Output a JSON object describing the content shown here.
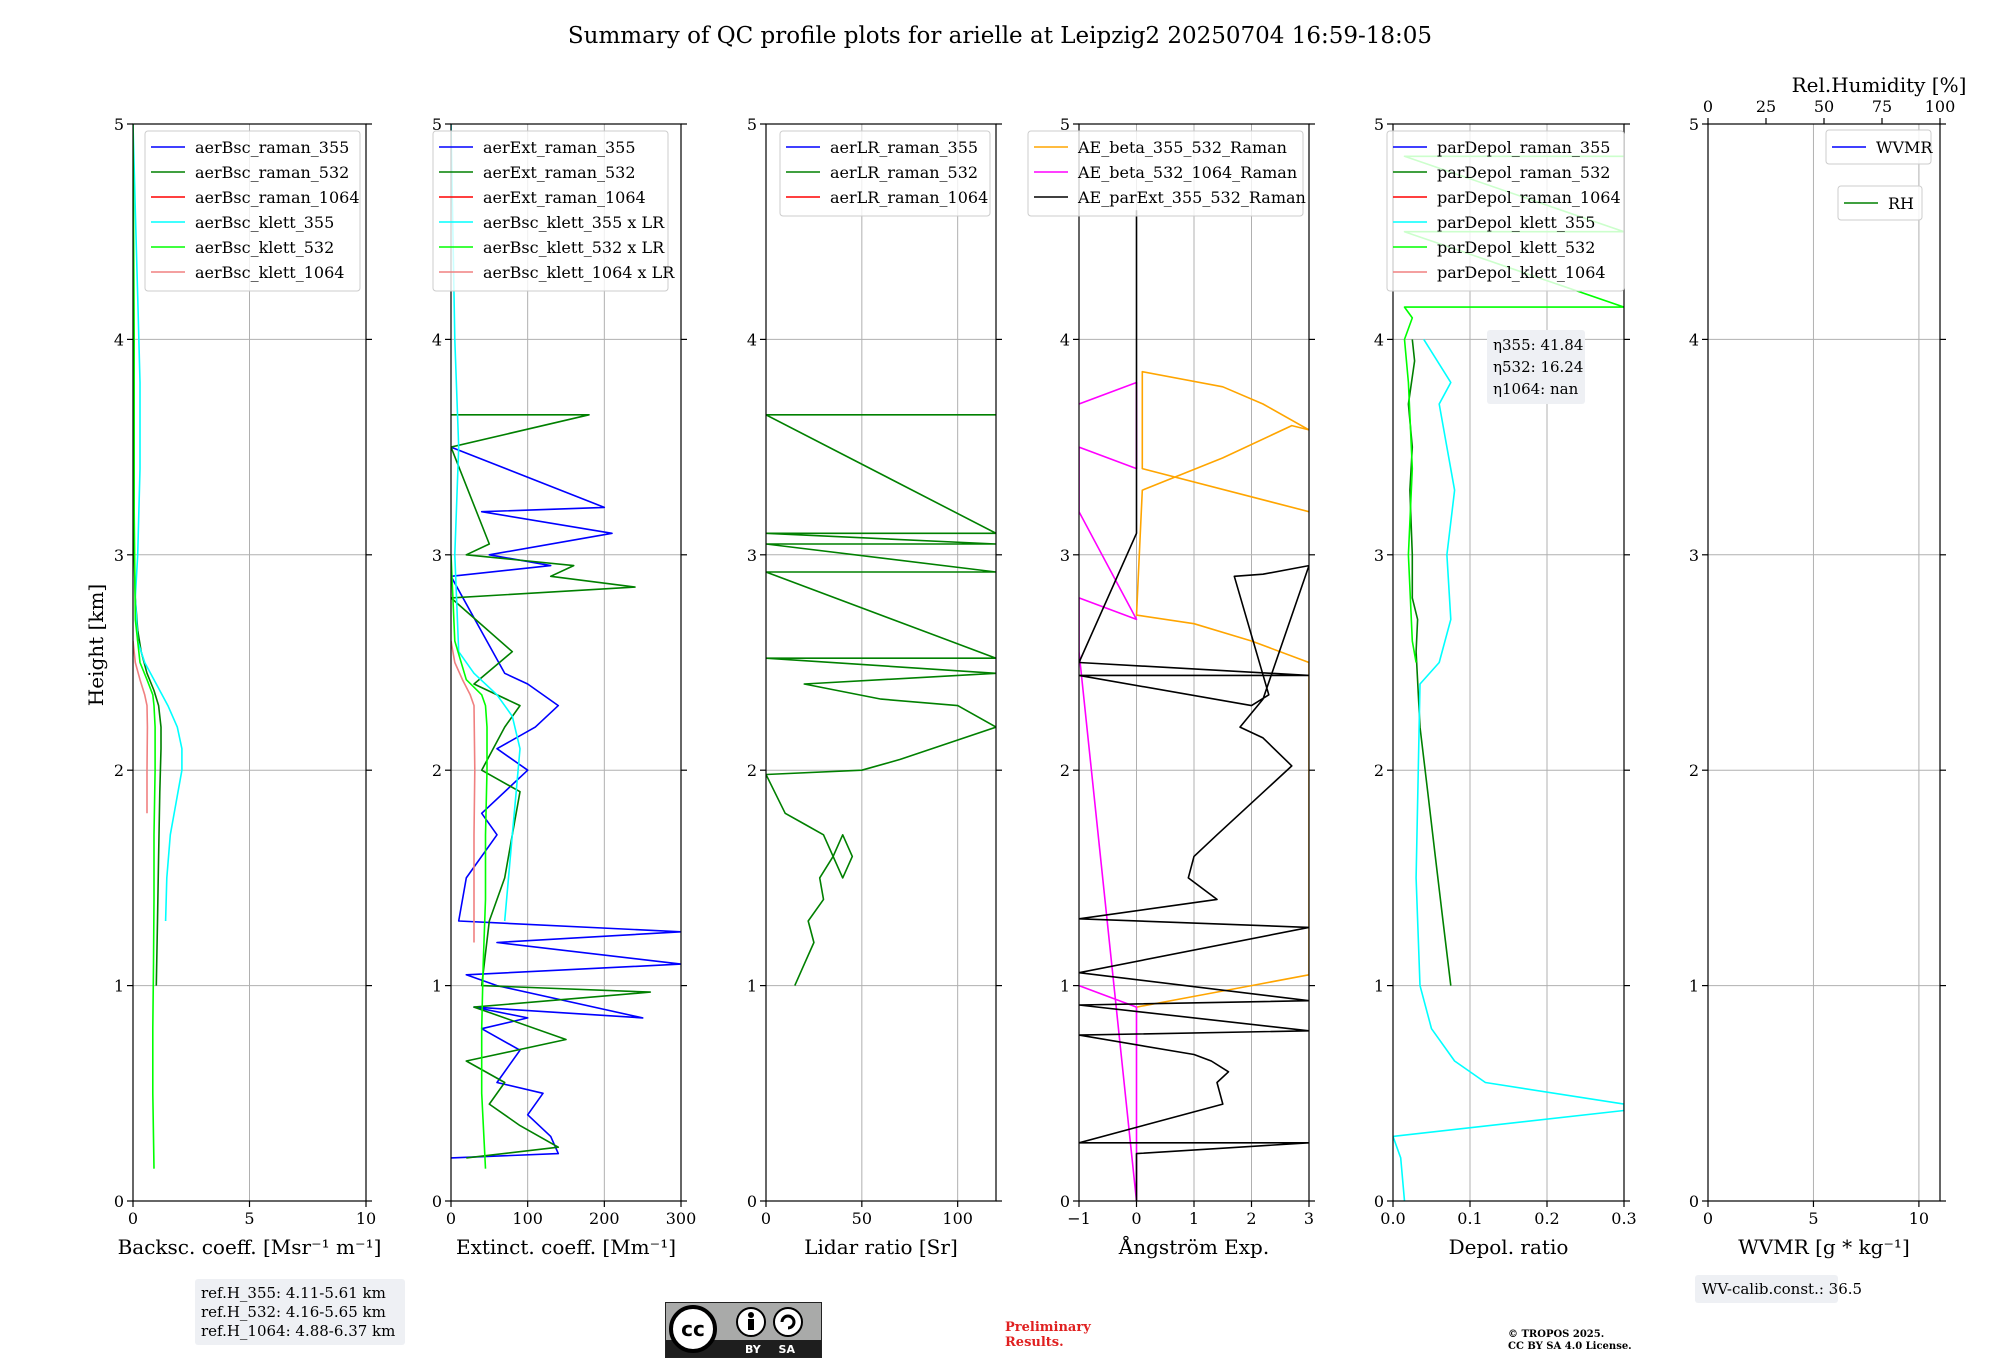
{
  "figure": {
    "title": "Summary of QC profile plots for arielle at Leipzig2 20250704 16:59-18:05",
    "preliminary_line1": "Preliminary",
    "preliminary_line2": "Results.",
    "copyright_line1": "© TROPOS 2025.",
    "copyright_line2": "CC BY SA 4.0 License.",
    "cc_badge_text": "BY SA",
    "wv_calib": "WV-calib.const.: 36.5",
    "ref_heights": [
      "ref.H_355: 4.11-5.61 km",
      "ref.H_532: 4.16-5.65 km",
      "ref.H_1064: 4.88-6.37 km"
    ],
    "eta_labels": [
      "η355: 41.84",
      "η532: 16.24",
      "η1064: nan"
    ],
    "shared_ylabel": "Height [km]"
  },
  "colors": {
    "raman_355": "#0000ff",
    "raman_532": "#008000",
    "raman_1064": "#ff0000",
    "klett_355": "#00ffff",
    "klett_532": "#00ff00",
    "klett_1064": "#f08080",
    "ae_355_532": "#ffa500",
    "ae_532_1064": "#ff00ff",
    "ae_ext": "#000000",
    "grid": "#b0b0b0"
  },
  "chart_data": [
    {
      "type": "line",
      "xlabel": "Backsc. coeff. [Msr⁻¹ m⁻¹]",
      "ylabel": "Height [km]",
      "xlim": [
        0,
        10
      ],
      "ylim": [
        0,
        5
      ],
      "xticks": [
        0,
        5,
        10
      ],
      "yticks": [
        0,
        1,
        2,
        3,
        4,
        5
      ],
      "grid": true,
      "legend": "upper right",
      "series": [
        {
          "name": "aerBsc_raman_355",
          "color": "#0000ff",
          "x": [],
          "y": []
        },
        {
          "name": "aerBsc_raman_532",
          "color": "#008000",
          "x": [
            1.0,
            1.05,
            1.1,
            1.15,
            1.2,
            1.2,
            1.1,
            0.9,
            0.6,
            0.35,
            0.2,
            0.1,
            0.05,
            0.05,
            0.03,
            0.02
          ],
          "y": [
            1.0,
            1.3,
            1.6,
            1.9,
            2.1,
            2.2,
            2.3,
            2.37,
            2.45,
            2.55,
            2.65,
            2.8,
            3.0,
            3.3,
            3.7,
            4.1
          ]
        },
        {
          "name": "aerBsc_raman_1064",
          "color": "#ff0000",
          "x": [],
          "y": []
        },
        {
          "name": "aerBsc_klett_355",
          "color": "#00ffff",
          "x": [
            1.4,
            1.45,
            1.6,
            1.85,
            2.1,
            2.1,
            1.9,
            1.5,
            1.0,
            0.5,
            0.2,
            0.1,
            0.2,
            0.3,
            0.3,
            0.2,
            0.1,
            0.0
          ],
          "y": [
            1.3,
            1.5,
            1.7,
            1.85,
            2.0,
            2.1,
            2.2,
            2.3,
            2.4,
            2.5,
            2.6,
            2.8,
            3.0,
            3.4,
            3.8,
            4.2,
            4.6,
            5.0
          ]
        },
        {
          "name": "aerBsc_klett_532",
          "color": "#00ff00",
          "x": [
            0.9,
            0.85,
            0.85,
            0.88,
            0.9,
            0.9,
            0.95,
            0.95,
            0.9,
            0.85,
            0.6,
            0.3,
            0.1,
            0.05,
            0.05,
            0.0
          ],
          "y": [
            0.15,
            0.5,
            0.8,
            1.1,
            1.4,
            1.7,
            2.0,
            2.2,
            2.3,
            2.35,
            2.42,
            2.5,
            2.7,
            3.2,
            4.0,
            5.0
          ]
        },
        {
          "name": "aerBsc_klett_1064",
          "color": "#f08080",
          "x": [
            0.6,
            0.6,
            0.62,
            0.6,
            0.5,
            0.3,
            0.1,
            0.0
          ],
          "y": [
            1.8,
            2.0,
            2.2,
            2.3,
            2.35,
            2.42,
            2.5,
            2.6
          ]
        }
      ]
    },
    {
      "type": "line",
      "xlabel": "Extinct. coeff. [Mm⁻¹]",
      "xlim": [
        0,
        300
      ],
      "ylim": [
        0,
        5
      ],
      "xticks": [
        0,
        100,
        200,
        300
      ],
      "yticks": [
        0,
        1,
        2,
        3,
        4,
        5
      ],
      "grid": true,
      "legend": "upper right",
      "series": [
        {
          "name": "aerExt_raman_355",
          "color": "#0000ff",
          "x": [
            0,
            140,
            130,
            100,
            120,
            60,
            90,
            40,
            100,
            30,
            250,
            60,
            20,
            300,
            60,
            300,
            10,
            20,
            60,
            40,
            100,
            60,
            110,
            140,
            100,
            70,
            0,
            130,
            50,
            210,
            40,
            200,
            0
          ],
          "y": [
            0.2,
            0.22,
            0.3,
            0.4,
            0.5,
            0.55,
            0.7,
            0.8,
            0.85,
            0.9,
            0.85,
            1.0,
            1.05,
            1.1,
            1.2,
            1.25,
            1.3,
            1.5,
            1.7,
            1.8,
            2.0,
            2.1,
            2.2,
            2.3,
            2.4,
            2.45,
            2.9,
            2.95,
            3.0,
            3.1,
            3.2,
            3.22,
            3.5
          ]
        },
        {
          "name": "aerExt_raman_532",
          "color": "#008000",
          "x": [
            20,
            140,
            90,
            50,
            70,
            20,
            150,
            30,
            260,
            40,
            50,
            70,
            80,
            90,
            40,
            70,
            90,
            30,
            80,
            0,
            240,
            130,
            160,
            20,
            50,
            0,
            180,
            0
          ],
          "y": [
            0.2,
            0.25,
            0.35,
            0.45,
            0.55,
            0.65,
            0.75,
            0.9,
            0.97,
            1.0,
            1.3,
            1.5,
            1.7,
            1.9,
            2.0,
            2.2,
            2.3,
            2.4,
            2.55,
            2.8,
            2.85,
            2.9,
            2.95,
            3.0,
            3.05,
            3.5,
            3.65,
            3.65
          ]
        },
        {
          "name": "aerExt_raman_1064",
          "color": "#ff0000",
          "x": [],
          "y": []
        },
        {
          "name": "aerBsc_klett_355 x LR",
          "color": "#00ffff",
          "x": [
            70,
            75,
            80,
            85,
            90,
            80,
            60,
            30,
            10,
            5,
            10,
            5,
            0
          ],
          "y": [
            1.3,
            1.5,
            1.7,
            1.9,
            2.1,
            2.25,
            2.35,
            2.45,
            2.55,
            3.0,
            3.5,
            4.0,
            5.0
          ]
        },
        {
          "name": "aerBsc_klett_532 x LR",
          "color": "#00ff00",
          "x": [
            45,
            40,
            40,
            42,
            45,
            45,
            47,
            47,
            45,
            40,
            20,
            5,
            0
          ],
          "y": [
            0.15,
            0.5,
            0.8,
            1.1,
            1.4,
            1.7,
            2.0,
            2.2,
            2.3,
            2.35,
            2.42,
            2.6,
            3.0
          ]
        },
        {
          "name": "aerBsc_klett_1064 x LR",
          "color": "#f08080",
          "x": [
            30,
            30,
            31,
            30,
            25,
            15,
            5,
            0
          ],
          "y": [
            1.2,
            1.7,
            2.0,
            2.3,
            2.35,
            2.42,
            2.5,
            2.6
          ]
        }
      ]
    },
    {
      "type": "line",
      "xlabel": "Lidar ratio [Sr]",
      "xlim": [
        0,
        120
      ],
      "ylim": [
        0,
        5
      ],
      "xticks": [
        0,
        50,
        100
      ],
      "yticks": [
        0,
        1,
        2,
        3,
        4,
        5
      ],
      "grid": true,
      "legend": "upper right",
      "series": [
        {
          "name": "aerLR_raman_355",
          "color": "#0000ff",
          "x": [],
          "y": []
        },
        {
          "name": "aerLR_raman_532",
          "color": "#008000",
          "x": [
            15,
            20,
            25,
            22,
            30,
            28,
            35,
            40,
            45,
            40,
            30,
            20,
            10,
            0,
            50,
            70,
            120,
            100,
            60,
            20,
            120,
            0,
            120,
            0,
            120,
            0,
            120,
            0,
            120,
            0,
            120
          ],
          "y": [
            1.0,
            1.1,
            1.2,
            1.3,
            1.4,
            1.5,
            1.6,
            1.7,
            1.6,
            1.5,
            1.7,
            1.75,
            1.8,
            1.98,
            2.0,
            2.05,
            2.2,
            2.3,
            2.33,
            2.4,
            2.45,
            2.52,
            2.52,
            2.92,
            2.92,
            3.05,
            3.05,
            3.1,
            3.1,
            3.65,
            3.65
          ]
        },
        {
          "name": "aerLR_raman_1064",
          "color": "#ff0000",
          "x": [],
          "y": []
        }
      ]
    },
    {
      "type": "line",
      "xlabel": "Ångström Exp.",
      "xlim": [
        -1,
        3
      ],
      "ylim": [
        0,
        5
      ],
      "xticks": [
        -1,
        0,
        1,
        2,
        3
      ],
      "yticks": [
        0,
        1,
        2,
        3,
        4,
        5
      ],
      "grid": true,
      "legend": "upper right",
      "series": [
        {
          "name": "AE_beta_355_532_Raman",
          "color": "#ffa500",
          "x": [
            0,
            1,
            2,
            3,
            3,
            2,
            1,
            0,
            0.1,
            1.5,
            2.7,
            3.0,
            2.2,
            1.5,
            0.1,
            0.1,
            3.0
          ],
          "y": [
            0.9,
            0.95,
            1.0,
            1.05,
            2.5,
            2.6,
            2.68,
            2.72,
            3.3,
            3.45,
            3.6,
            3.58,
            3.7,
            3.78,
            3.85,
            3.4,
            3.2
          ]
        },
        {
          "name": "AE_beta_532_1064_Raman",
          "color": "#ff00ff",
          "x": [
            -1,
            0,
            0,
            -1,
            -1,
            0,
            -1,
            -1,
            0,
            0,
            -1
          ],
          "y": [
            1.0,
            0.9,
            0.0,
            2.55,
            2.8,
            2.7,
            3.2,
            3.5,
            3.4,
            3.8,
            3.7
          ]
        },
        {
          "name": "AE_parExt_355_532_Raman",
          "color": "#000000",
          "x": [
            0,
            0,
            3,
            -1,
            1.5,
            1.4,
            1.6,
            1.3,
            1.0,
            -1,
            3,
            -1,
            3,
            -1,
            3,
            -1,
            1.4,
            0.9,
            1.0,
            1.4,
            2.7,
            2.2,
            1.8,
            2.2,
            3.0,
            2.2,
            1.7,
            2.3,
            2.0,
            -1,
            3,
            -1,
            0,
            0
          ],
          "y": [
            0.0,
            0.22,
            0.27,
            0.27,
            0.45,
            0.55,
            0.6,
            0.65,
            0.68,
            0.77,
            0.79,
            0.91,
            0.93,
            1.06,
            1.27,
            1.31,
            1.4,
            1.5,
            1.6,
            1.7,
            2.02,
            2.15,
            2.2,
            2.33,
            2.95,
            2.91,
            2.9,
            2.35,
            2.3,
            2.44,
            2.44,
            2.5,
            3.1,
            4.6
          ]
        }
      ]
    },
    {
      "type": "line",
      "xlabel": "Depol. ratio",
      "xlim": [
        0,
        0.3
      ],
      "ylim": [
        0,
        5
      ],
      "xticks": [
        0.0,
        0.1,
        0.2,
        0.3
      ],
      "yticks": [
        0,
        1,
        2,
        3,
        4,
        5
      ],
      "grid": true,
      "legend": "upper right",
      "series": [
        {
          "name": "parDepol_raman_355",
          "color": "#0000ff",
          "x": [],
          "y": []
        },
        {
          "name": "parDepol_raman_532",
          "color": "#008000",
          "x": [
            0.075,
            0.065,
            0.055,
            0.045,
            0.035,
            0.03,
            0.032,
            0.025,
            0.025,
            0.022,
            0.025,
            0.02,
            0.028,
            0.025
          ],
          "y": [
            1.0,
            1.3,
            1.6,
            1.9,
            2.2,
            2.55,
            2.7,
            2.8,
            3.0,
            3.3,
            3.5,
            3.7,
            3.9,
            4.0
          ]
        },
        {
          "name": "parDepol_raman_1064",
          "color": "#ff0000",
          "x": [],
          "y": []
        },
        {
          "name": "parDepol_klett_355",
          "color": "#00ffff",
          "x": [
            0.015,
            0.01,
            0.0,
            0.3,
            0.3,
            0.12,
            0.08,
            0.05,
            0.035,
            0.03,
            0.035,
            0.06,
            0.075,
            0.07,
            0.08,
            0.07,
            0.06,
            0.075,
            0.04
          ],
          "y": [
            0.0,
            0.2,
            0.3,
            0.42,
            0.45,
            0.55,
            0.65,
            0.8,
            1.0,
            1.5,
            2.4,
            2.5,
            2.7,
            3.0,
            3.3,
            3.5,
            3.7,
            3.8,
            4.0
          ]
        },
        {
          "name": "parDepol_klett_532",
          "color": "#00ff00",
          "x": [
            0.03,
            0.025,
            0.02,
            0.025,
            0.02,
            0.015,
            0.025,
            0.015,
            0.3,
            0.015,
            0.3,
            0.015,
            0.3
          ],
          "y": [
            2.5,
            2.6,
            3.0,
            3.4,
            3.8,
            4.0,
            4.1,
            4.15,
            4.15,
            4.5,
            4.5,
            4.85,
            4.85
          ]
        },
        {
          "name": "parDepol_klett_1064",
          "color": "#f08080",
          "x": [],
          "y": []
        }
      ]
    },
    {
      "type": "line",
      "xlabel": "WVMR [g * kg⁻¹]",
      "xlim": [
        0,
        11
      ],
      "ylim": [
        0,
        5
      ],
      "xticks": [
        0,
        5,
        10
      ],
      "yticks": [
        0,
        1,
        2,
        3,
        4,
        5
      ],
      "top_axis_label": "Rel.Humidity [%]",
      "top_xticks": [
        0,
        25,
        50,
        75,
        100
      ],
      "grid": true,
      "legend": "upper right",
      "series": [
        {
          "name": "WVMR",
          "color": "#0000ff",
          "x": [],
          "y": []
        },
        {
          "name": "RH",
          "color": "#008000",
          "x": [],
          "y": []
        }
      ]
    }
  ]
}
